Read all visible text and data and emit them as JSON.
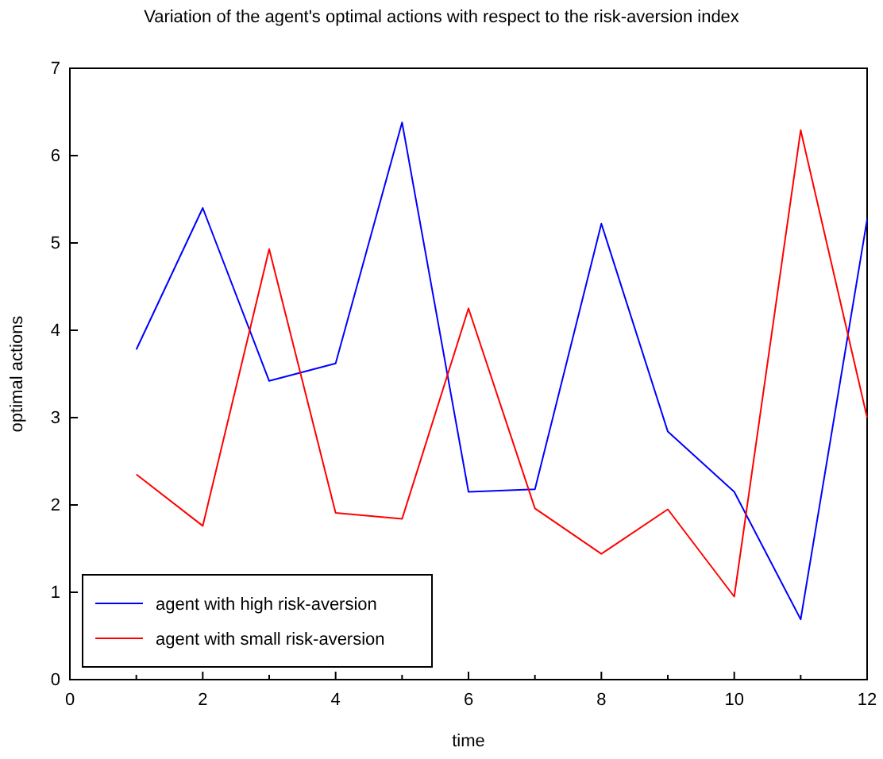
{
  "chart_data": {
    "type": "line",
    "title": "Variation of the agent's optimal actions with respect to the risk-aversion index",
    "xlabel": "time",
    "ylabel": "optimal actions",
    "x": [
      1,
      2,
      3,
      4,
      5,
      6,
      7,
      8,
      9,
      10,
      11,
      12
    ],
    "series": [
      {
        "name": "agent with high risk-aversion",
        "color": "#0000ff",
        "values": [
          3.78,
          5.4,
          3.42,
          3.62,
          6.38,
          2.15,
          2.18,
          5.22,
          2.84,
          2.15,
          0.69,
          5.27
        ]
      },
      {
        "name": "agent with small risk-aversion",
        "color": "#ff0000",
        "values": [
          2.35,
          1.76,
          4.93,
          1.91,
          1.84,
          4.25,
          1.96,
          1.44,
          1.95,
          0.95,
          6.29,
          3.0
        ]
      }
    ],
    "xlim": [
      0,
      12
    ],
    "ylim": [
      0,
      7
    ],
    "xticks": [
      0,
      {
        "value": 1,
        "label": null
      },
      2,
      {
        "value": 3,
        "label": null
      },
      4,
      {
        "value": 5,
        "label": null
      },
      6,
      {
        "value": 7,
        "label": null
      },
      8,
      {
        "value": 9,
        "label": null
      },
      10,
      {
        "value": 11,
        "label": null
      },
      12
    ],
    "yticks": [
      0,
      1,
      2,
      3,
      4,
      5,
      6,
      7
    ],
    "grid": false,
    "legend": "bottom left",
    "marker": "none",
    "line_style": "solid"
  }
}
